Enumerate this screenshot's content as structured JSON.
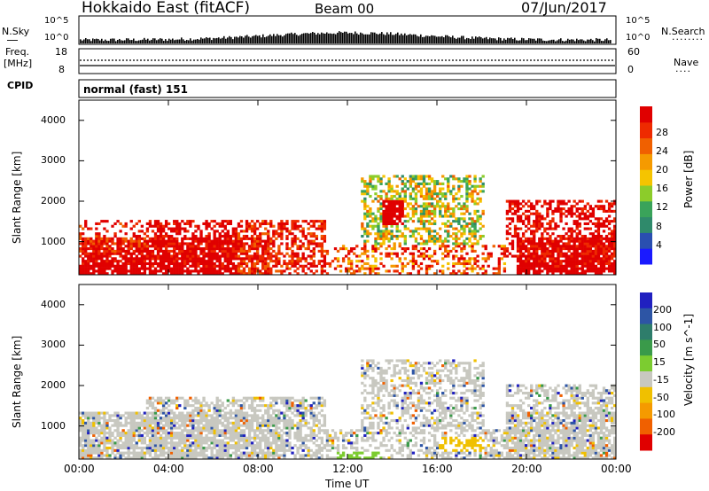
{
  "header": {
    "station": "Hokkaido East (fitACF)",
    "beam": "Beam 00",
    "date": "07/Jun/2017"
  },
  "noise_panel": {
    "left_label": "N.Sky",
    "right_label": "N.Search",
    "tick_top": "10^5",
    "tick_bottom": "10^0"
  },
  "freq_panel": {
    "label_line1": "Freq.",
    "label_line2": "[MHz]",
    "right_label": "Nave",
    "left_ticks": [
      "18",
      "8"
    ],
    "right_ticks": [
      "60",
      "0"
    ]
  },
  "cpid": {
    "label": "CPID",
    "mode": "normal (fast) 151"
  },
  "time_axis": {
    "title": "Time UT",
    "ticks": [
      "00:00",
      "04:00",
      "08:00",
      "12:00",
      "16:00",
      "20:00",
      "00:00"
    ]
  },
  "power_panel": {
    "ylabel": "Slant Range [km]",
    "yticks": [
      "1000",
      "2000",
      "3000",
      "4000"
    ],
    "colorbar_label": "Power [dB]",
    "colorbar_ticks": [
      "4",
      "8",
      "12",
      "16",
      "20",
      "24",
      "28"
    ],
    "colors": [
      "#1a1aff",
      "#2a4fb0",
      "#2f8a6b",
      "#3aa35a",
      "#8ccc2a",
      "#f5c400",
      "#f59a00",
      "#f06000",
      "#ee2a00",
      "#e00000"
    ]
  },
  "velocity_panel": {
    "ylabel": "Slant Range [km]",
    "yticks": [
      "1000",
      "2000",
      "3000",
      "4000"
    ],
    "colorbar_label": "Velocity [m s^-1]",
    "colorbar_ticks": [
      "200",
      "100",
      "50",
      "15",
      "-15",
      "-50",
      "-100",
      "-200"
    ],
    "colors": [
      "#2020c0",
      "#2d55a5",
      "#2e7d6b",
      "#3a9a4a",
      "#7ccc30",
      "#c8c8c0",
      "#f0c000",
      "#f59a00",
      "#f06000",
      "#e00000"
    ]
  },
  "chart_data": {
    "type": "heatmap",
    "x_range_hours": [
      0,
      24
    ],
    "y_range_km": [
      180,
      4500
    ],
    "panels": [
      "Power [dB]",
      "Velocity [m s^-1]"
    ]
  }
}
